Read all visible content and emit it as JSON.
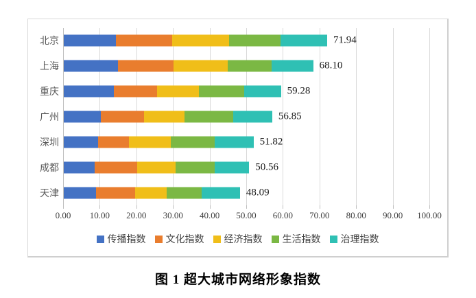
{
  "caption": {
    "text": "图 1 超大城市网络形象指数"
  },
  "chart_data": {
    "type": "bar",
    "orientation": "horizontal-stacked",
    "title": "图 1 超大城市网络形象指数",
    "categories": [
      "北京",
      "上海",
      "重庆",
      "广州",
      "深圳",
      "成都",
      "天津"
    ],
    "totals": [
      71.94,
      68.1,
      59.28,
      56.85,
      51.82,
      50.56,
      48.09
    ],
    "total_labels": [
      "71.94",
      "68.10",
      "59.28",
      "56.85",
      "51.82",
      "50.56",
      "48.09"
    ],
    "series": [
      {
        "name": "传播指数",
        "color": "#4472C4",
        "values": [
          14.3,
          14.8,
          13.6,
          10.1,
          9.3,
          8.4,
          8.8
        ]
      },
      {
        "name": "文化指数",
        "color": "#E97D2E",
        "values": [
          15.3,
          15.1,
          11.8,
          11.8,
          8.5,
          11.7,
          10.6
        ]
      },
      {
        "name": "经济指数",
        "color": "#F0BE19",
        "values": [
          15.5,
          14.8,
          11.5,
          11.1,
          11.5,
          10.5,
          8.6
        ]
      },
      {
        "name": "生活指数",
        "color": "#7BB844",
        "values": [
          14.0,
          12.1,
          12.3,
          13.2,
          11.9,
          10.6,
          9.6
        ]
      },
      {
        "name": "治理指数",
        "color": "#2FC0B4",
        "values": [
          12.8,
          11.3,
          10.1,
          10.7,
          10.6,
          9.4,
          10.5
        ]
      }
    ],
    "x_axis": {
      "min": 0,
      "max": 100,
      "tick_step": 10,
      "tick_labels": [
        "0.00",
        "10.00",
        "20.00",
        "30.00",
        "40.00",
        "50.00",
        "60.00",
        "70.00",
        "80.00",
        "90.00",
        "100.00"
      ],
      "grid": true
    },
    "legend": {
      "position": "bottom",
      "entries": [
        "传播指数",
        "文化指数",
        "经济指数",
        "生活指数",
        "治理指数"
      ]
    }
  }
}
